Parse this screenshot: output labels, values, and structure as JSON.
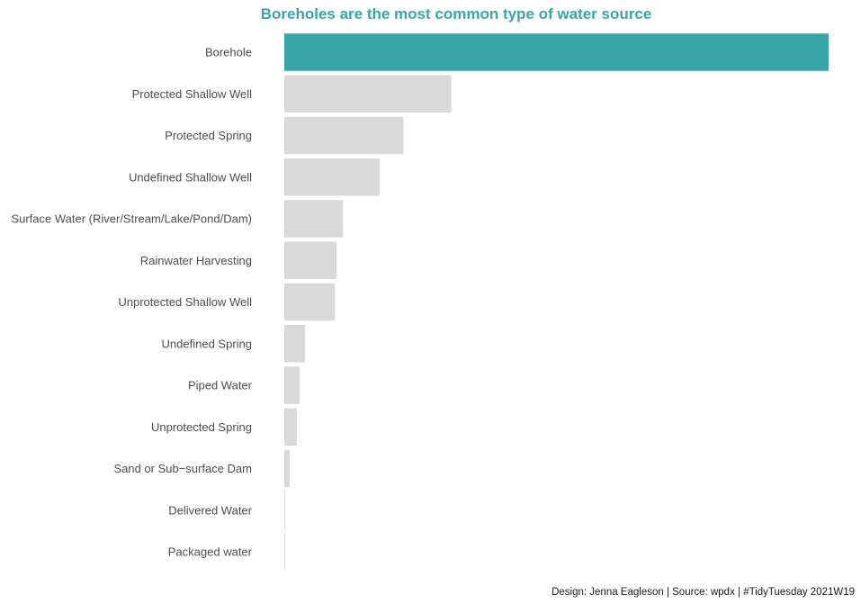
{
  "chart_data": {
    "type": "bar",
    "orientation": "horizontal",
    "title": "Boreholes are the most common type of water source",
    "caption": "Design: Jenna Eagleson | Source: wpdx | #TidyTuesday 2021W19",
    "xlabel": "",
    "ylabel": "",
    "categories": [
      "Borehole",
      "Protected Shallow Well",
      "Protected Spring",
      "Undefined Shallow Well",
      "Surface Water (River/Stream/Lake/Pond/Dam)",
      "Rainwater Harvesting",
      "Unprotected Shallow Well",
      "Undefined Spring",
      "Piped Water",
      "Unprotected Spring",
      "Sand or Sub−surface Dam",
      "Delivered Water",
      "Packaged water"
    ],
    "values": [
      100,
      30.7,
      21.9,
      17.5,
      10.8,
      9.6,
      9.3,
      3.8,
      2.8,
      2.3,
      1.0,
      0.15,
      0.1
    ],
    "xlim": [
      0,
      100
    ],
    "grid": false,
    "legend": "none",
    "highlight_index": 0,
    "colors": {
      "highlight": "#3aa5a6",
      "default": "#d9d9d9",
      "title": "#3aa5a6"
    }
  }
}
